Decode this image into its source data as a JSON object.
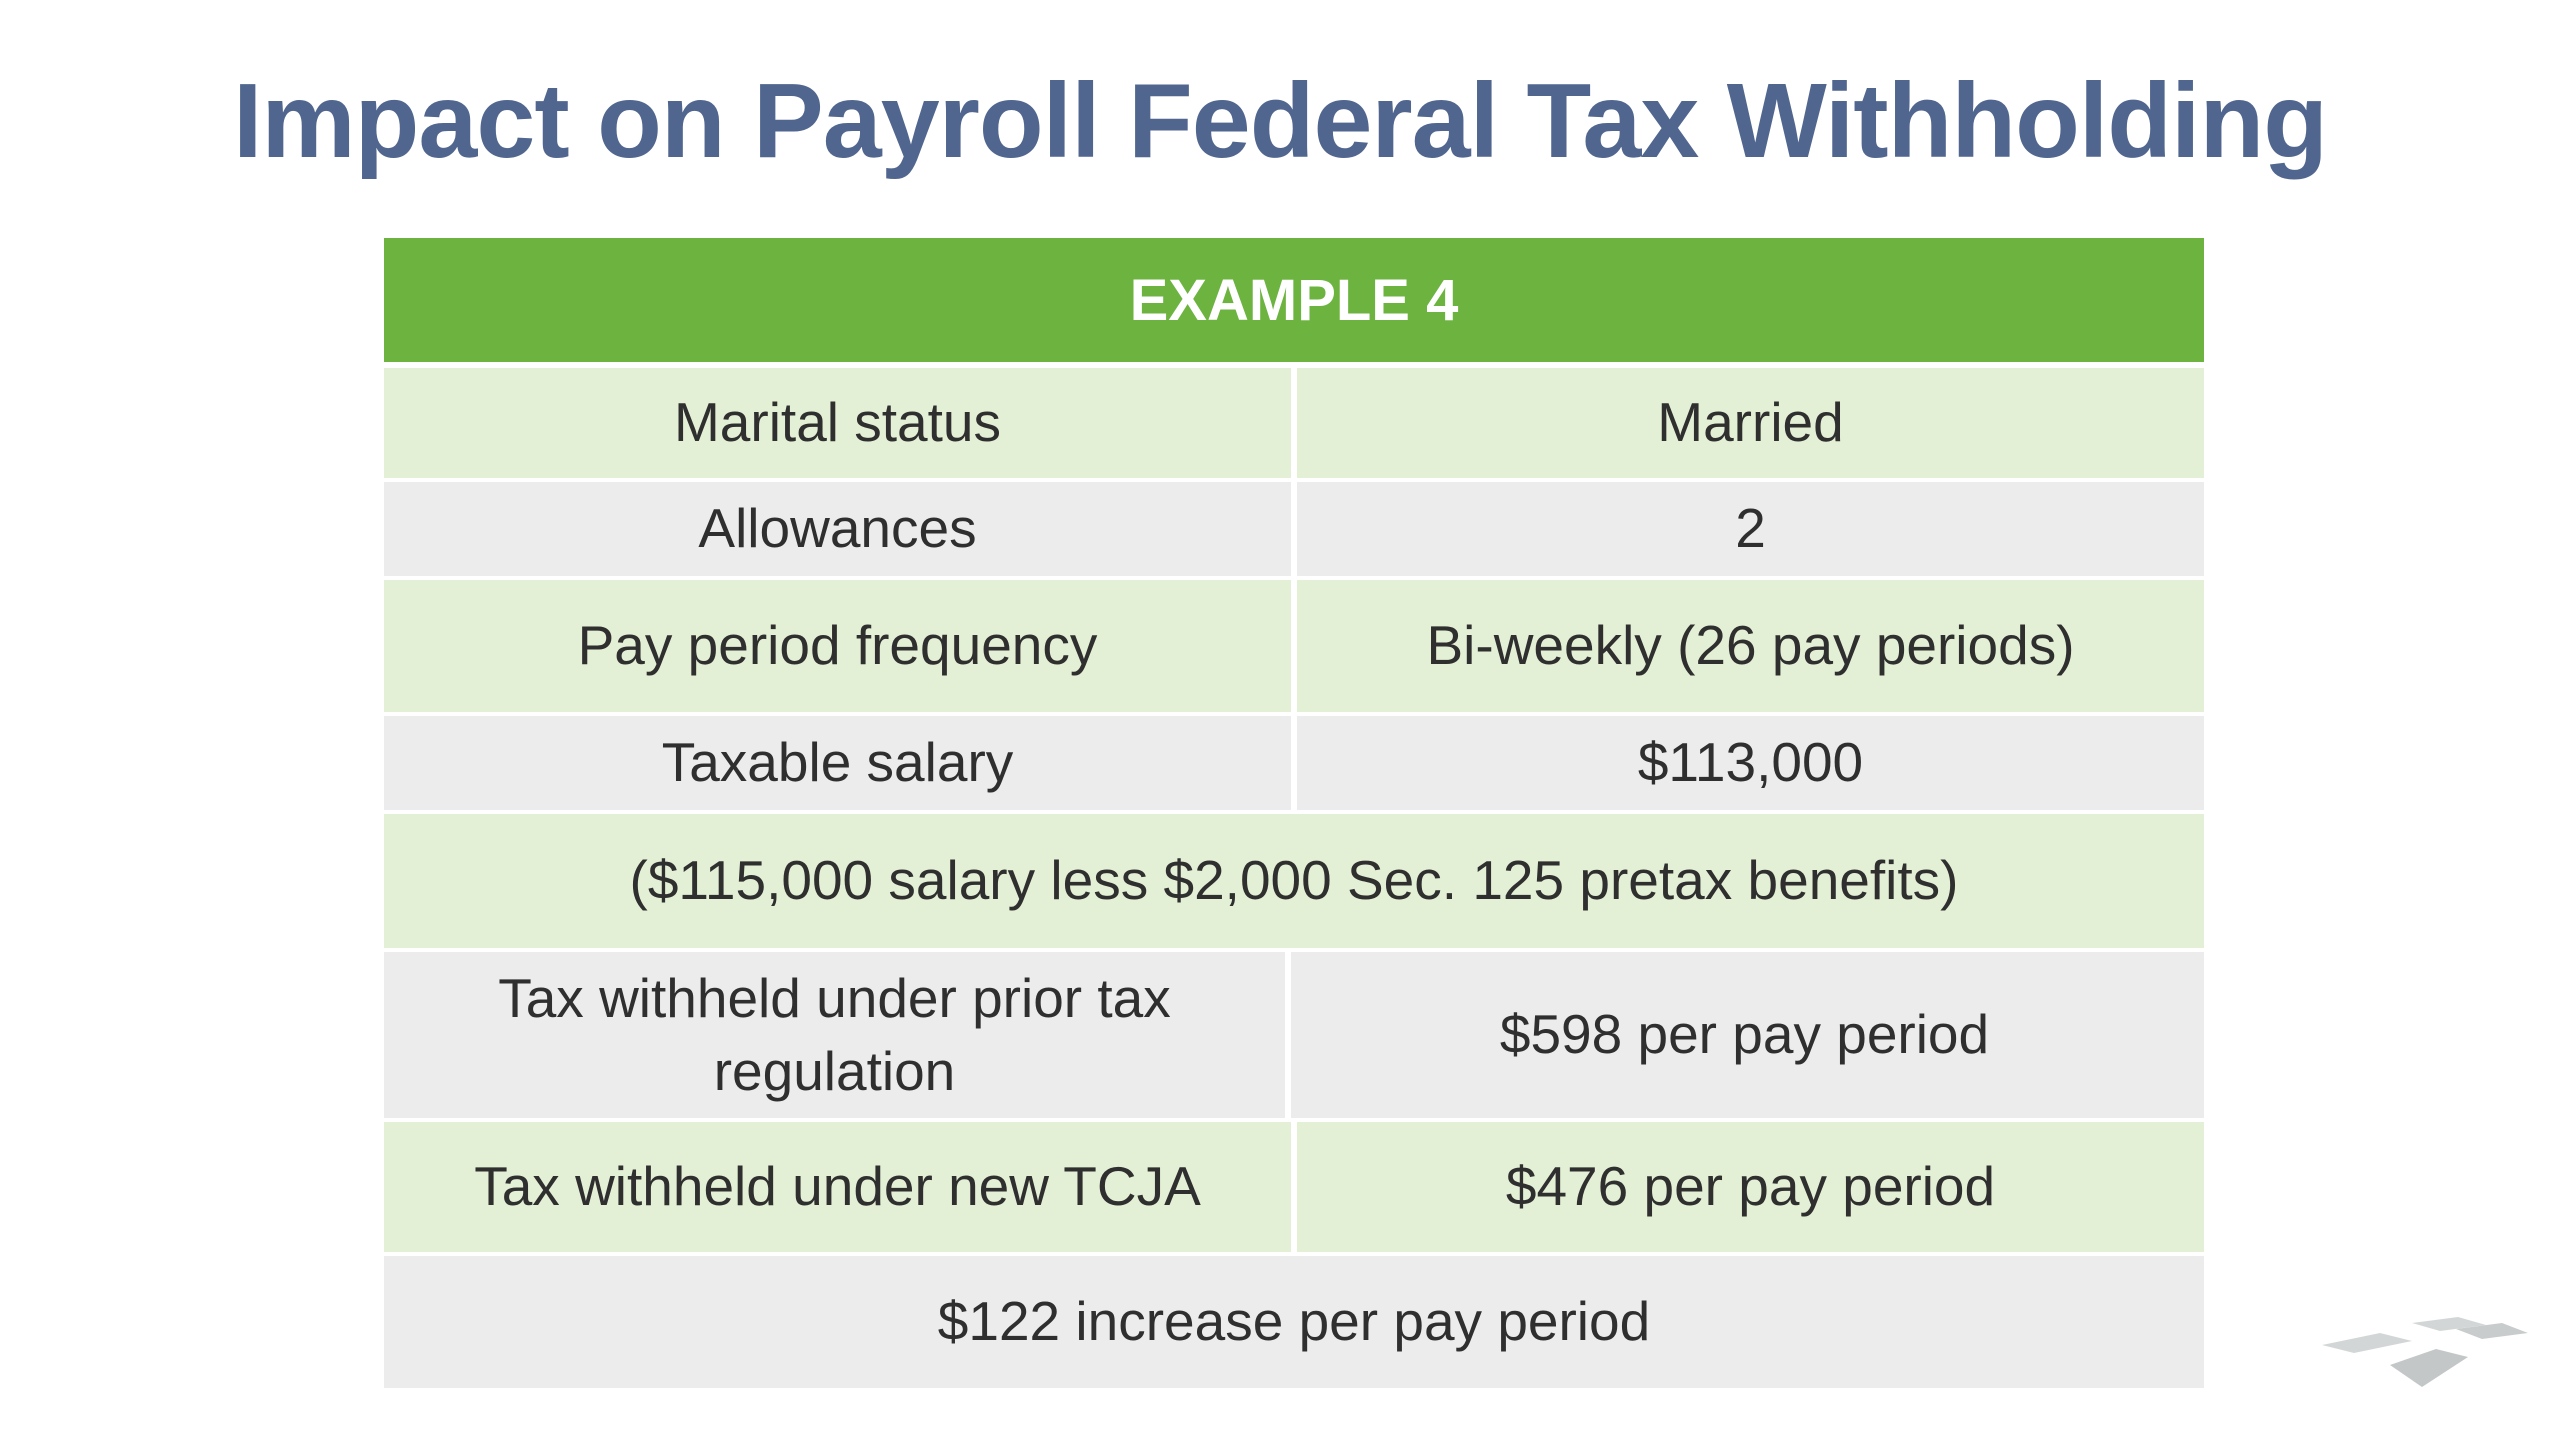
{
  "slide": {
    "title": "Impact on Payroll Federal Tax Withholding"
  },
  "table": {
    "header": "EXAMPLE 4",
    "rows": [
      {
        "label": "Marital status",
        "value": "Married"
      },
      {
        "label": "Allowances",
        "value": "2"
      },
      {
        "label": "Pay period frequency",
        "value": "Bi-weekly (26 pay periods)"
      },
      {
        "label": "Taxable salary",
        "value": "$113,000"
      },
      {
        "note": "($115,000 salary less $2,000 Sec. 125 pretax benefits)"
      },
      {
        "label": "Tax withheld under prior tax regulation",
        "value": "$598 per pay period"
      },
      {
        "label": "Tax withheld under new TCJA",
        "value": "$476 per pay period"
      },
      {
        "note": "$122 increase per pay period"
      }
    ]
  },
  "colors": {
    "title": "#51668f",
    "header_green": "#6db33f",
    "row_green": "#e3f0d5",
    "row_gray": "#ececec",
    "logo_gray": "#cfd2d3"
  },
  "icons": {
    "corner_logo": "firm-logo-icon"
  }
}
